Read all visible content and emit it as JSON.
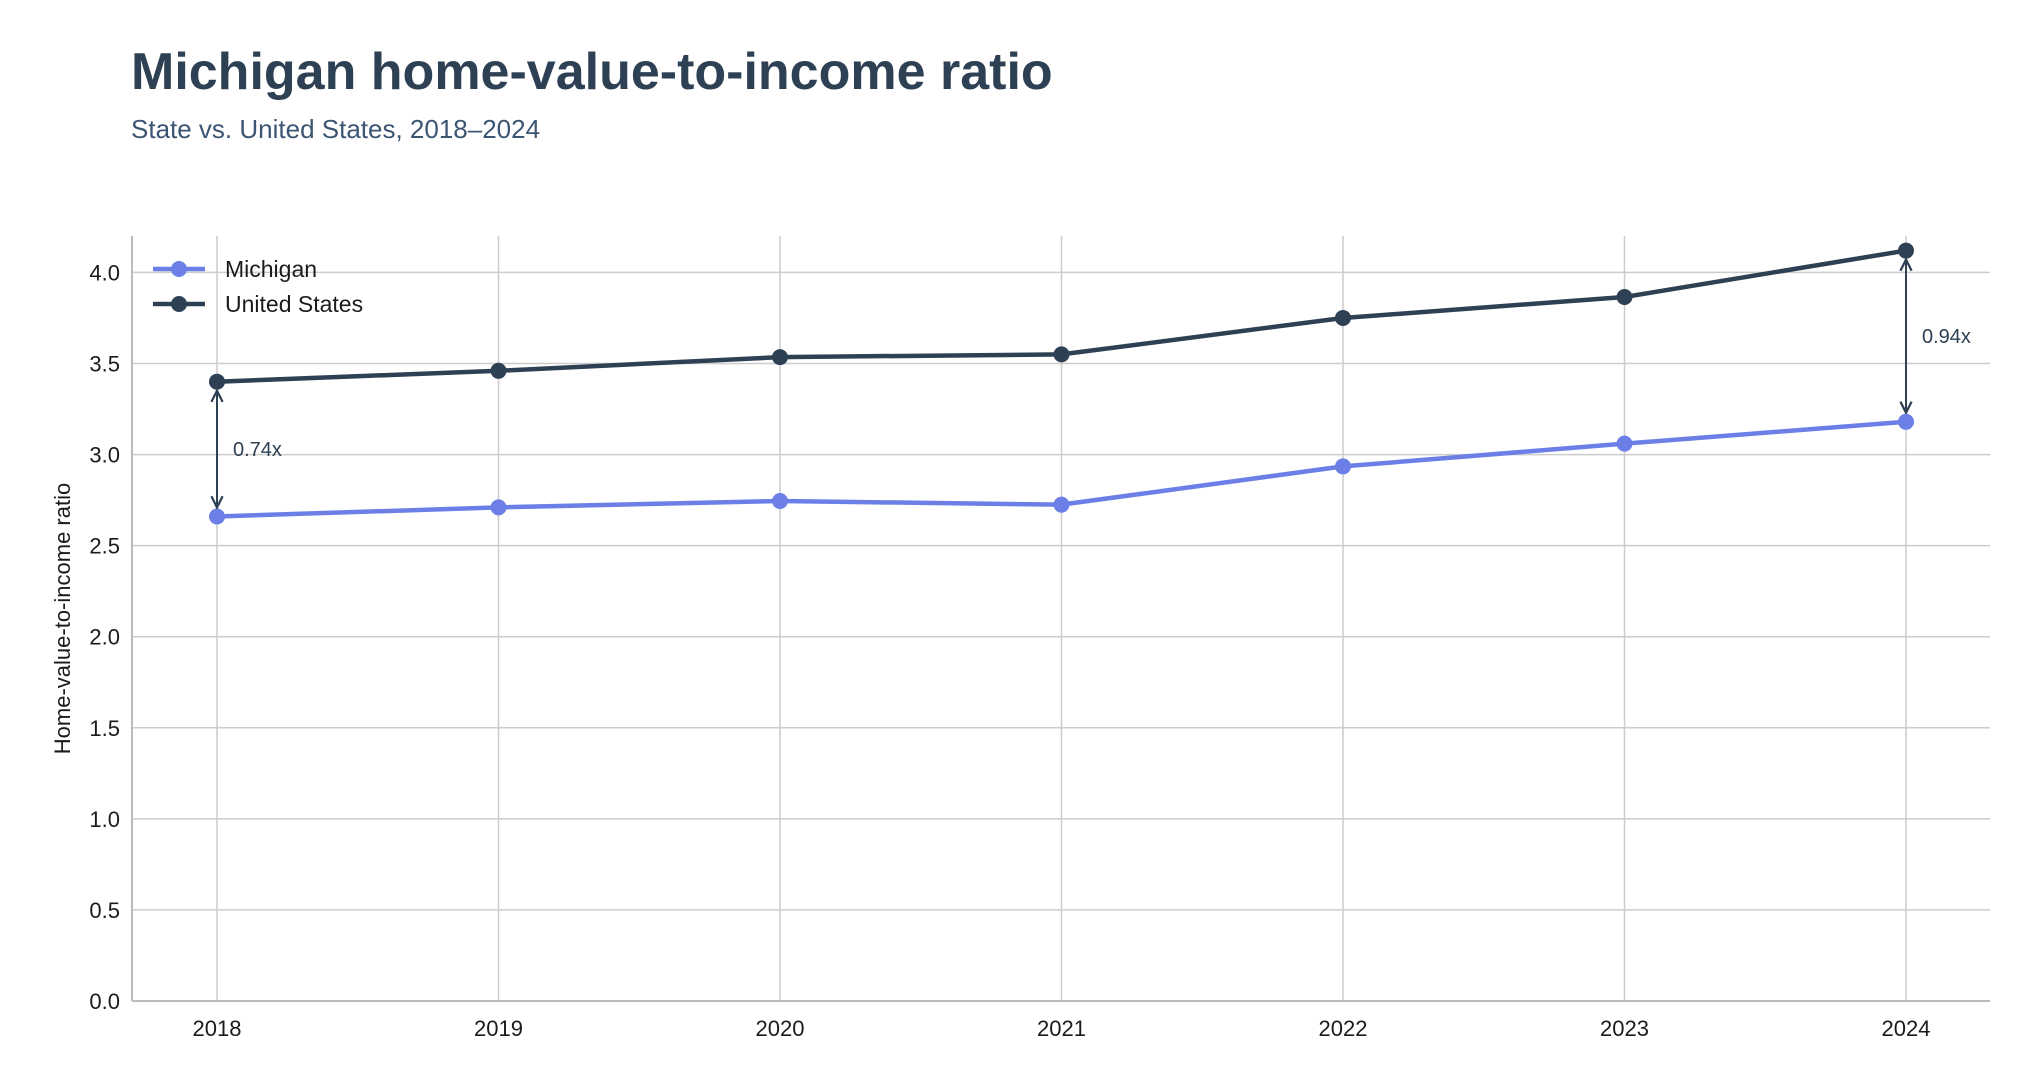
{
  "title": "Michigan home-value-to-income ratio",
  "subtitle": "State vs. United States, 2018–2024",
  "chart_data": {
    "type": "line",
    "title": "Michigan home-value-to-income ratio",
    "subtitle": "State vs. United States, 2018–2024",
    "xlabel": "",
    "ylabel": "Home-value-to-income ratio",
    "x": [
      "2018",
      "2019",
      "2020",
      "2021",
      "2022",
      "2023",
      "2024"
    ],
    "ylim": [
      0,
      4.2
    ],
    "yticks": [
      "0.0",
      "0.5",
      "1.0",
      "1.5",
      "2.0",
      "2.5",
      "3.0",
      "3.5",
      "4.0"
    ],
    "grid": true,
    "legend_position": "top-left",
    "series": [
      {
        "name": "Michigan",
        "color": "#6b7fe6",
        "values": [
          2.66,
          2.71,
          2.745,
          2.725,
          2.935,
          3.06,
          3.18
        ]
      },
      {
        "name": "United States",
        "color": "#2e4053",
        "values": [
          3.4,
          3.46,
          3.535,
          3.55,
          3.75,
          3.865,
          4.12
        ]
      }
    ],
    "annotations": [
      {
        "x": "2018",
        "label": "0.74x"
      },
      {
        "x": "2024",
        "label": "0.94x"
      }
    ]
  }
}
